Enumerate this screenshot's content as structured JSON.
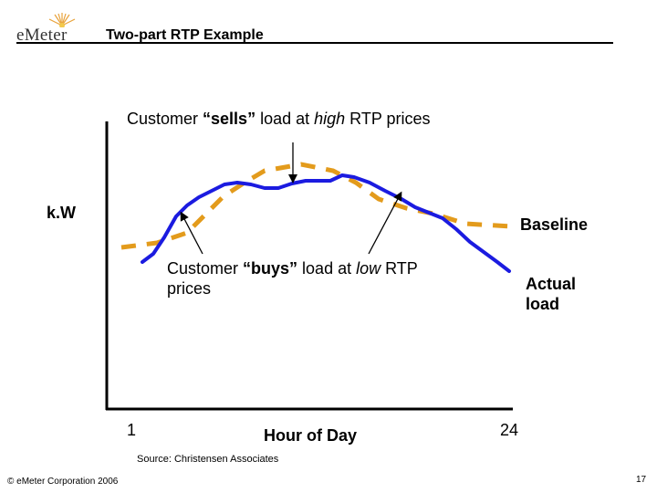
{
  "header": {
    "logo_text": "eMeter",
    "title": "Two-part RTP Example"
  },
  "diagram": {
    "annotation_sells_prefix": "Customer ",
    "annotation_sells_bold": "“sells”",
    "annotation_sells_mid": " load at ",
    "annotation_sells_italic": "high",
    "annotation_sells_suffix": " RTP prices",
    "annotation_buys_line1_prefix": "Customer ",
    "annotation_buys_line1_bold": "“buys”",
    "annotation_buys_line1_mid": " load at ",
    "annotation_buys_line1_italic": "low",
    "annotation_buys_line1_suffix": " RTP",
    "annotation_buys_line2": "prices",
    "y_axis_label": "k.W",
    "x_axis_label": "Hour of Day",
    "x_start_label": "1",
    "x_end_label": "24",
    "baseline_label": "Baseline",
    "actual_load_line1": "Actual",
    "actual_load_line2": "load",
    "baseline_color": "#E39B1C",
    "actual_color": "#1B1BE0"
  },
  "footer": {
    "source": "Source: Christensen Associates",
    "copyright": "© eMeter Corporation 2006",
    "page_number": "17"
  }
}
